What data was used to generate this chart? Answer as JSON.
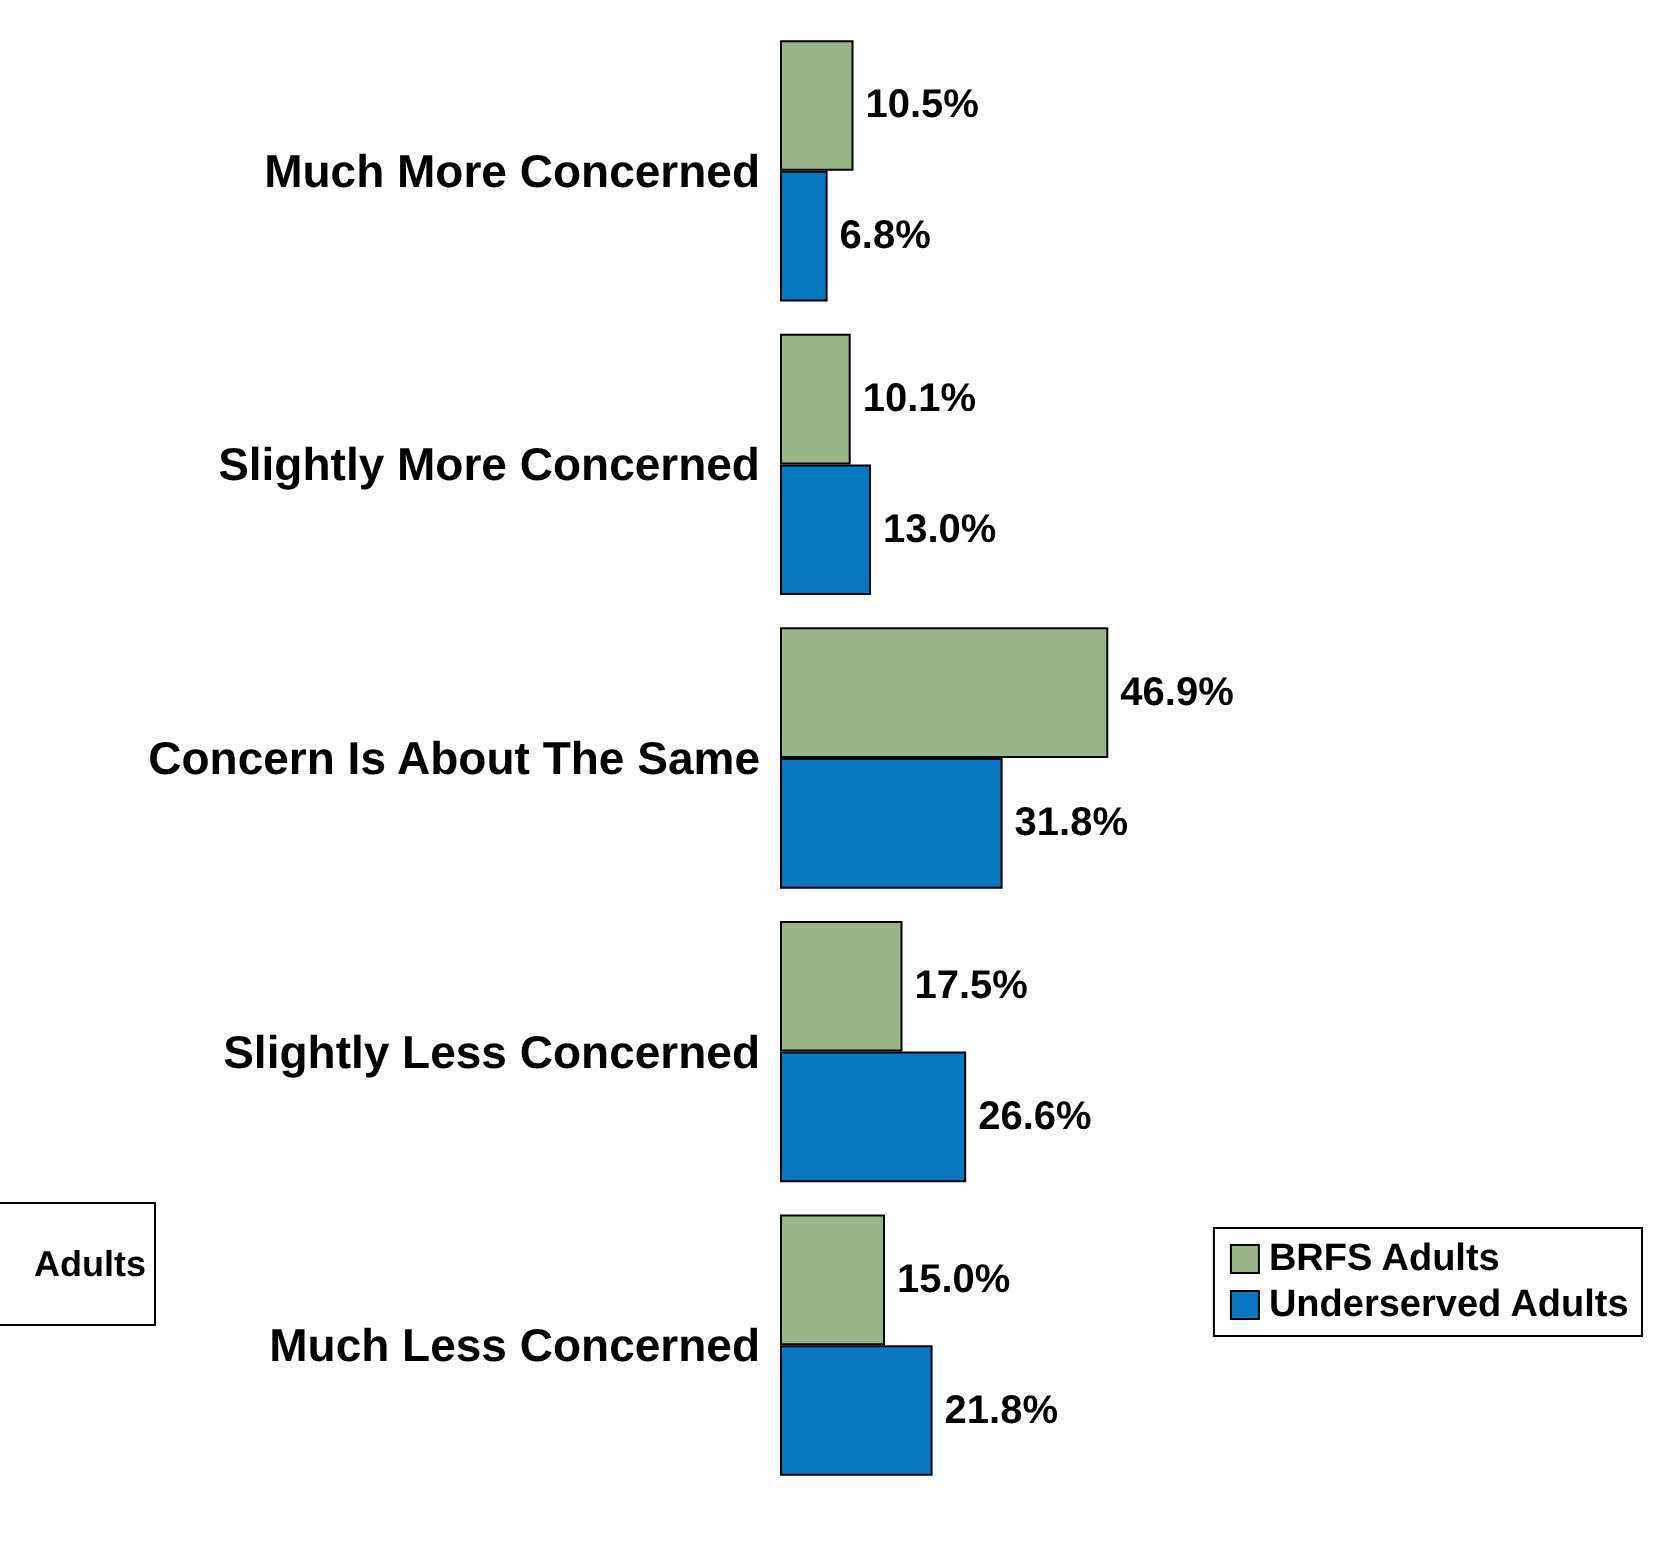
{
  "chart_data": {
    "type": "bar",
    "orientation": "horizontal",
    "categories": [
      "Much More Concerned",
      "Slightly More Concerned",
      "Concern Is About The Same",
      "Slightly Less Concerned",
      "Much Less Concerned"
    ],
    "series": [
      {
        "name": "BRFS Adults",
        "color": "#9bb58a",
        "values": [
          10.5,
          10.1,
          46.9,
          17.5,
          15.0
        ],
        "value_labels": [
          "10.5%",
          "10.1%",
          "46.9%",
          "17.5%",
          "15.0%"
        ]
      },
      {
        "name": "Underserved Adults",
        "color": "#0a78c0",
        "values": [
          6.8,
          13.0,
          31.8,
          26.6,
          21.8
        ],
        "value_labels": [
          "6.8%",
          "13.0%",
          "31.8%",
          "26.6%",
          "21.8%"
        ]
      }
    ],
    "legend": "bottom right",
    "annotations": [
      "Adults"
    ]
  }
}
